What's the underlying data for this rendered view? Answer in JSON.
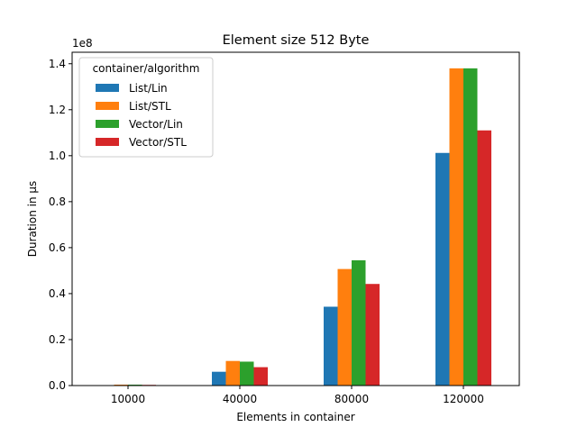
{
  "chart_data": {
    "type": "bar",
    "title": "Element size 512 Byte",
    "xlabel": "Elements in container",
    "ylabel": "Duration in µs",
    "offset_label": "1e8",
    "categories": [
      "10000",
      "40000",
      "80000",
      "120000"
    ],
    "ylim": [
      0,
      1.45
    ],
    "yticks": [
      0.0,
      0.2,
      0.4,
      0.6,
      0.8,
      1.0,
      1.2,
      1.4
    ],
    "ytick_labels": [
      "0.0",
      "0.2",
      "0.4",
      "0.6",
      "0.8",
      "1.0",
      "1.2",
      "1.4"
    ],
    "grid": false,
    "legend": {
      "title": "container/algorithm",
      "placement": "top-left"
    },
    "series": [
      {
        "name": "List/Lin",
        "color": "#1f77b4",
        "values": [
          0.001,
          0.06,
          0.343,
          1.012
        ]
      },
      {
        "name": "List/STL",
        "color": "#ff7f0e",
        "values": [
          0.004,
          0.107,
          0.507,
          1.38
        ]
      },
      {
        "name": "Vector/Lin",
        "color": "#2ca02c",
        "values": [
          0.004,
          0.104,
          0.545,
          1.38
        ]
      },
      {
        "name": "Vector/STL",
        "color": "#d62728",
        "values": [
          0.003,
          0.08,
          0.442,
          1.11
        ]
      }
    ]
  }
}
